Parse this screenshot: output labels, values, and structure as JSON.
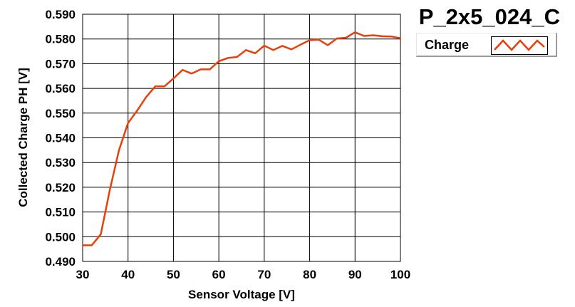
{
  "chart_data": {
    "type": "line",
    "title": "P_2x5_024_C",
    "xlabel": "Sensor Voltage [V]",
    "ylabel": "Collected Charge PH [V]",
    "xlim": [
      30,
      100
    ],
    "ylim": [
      0.49,
      0.59
    ],
    "xticks": [
      "30",
      "40",
      "50",
      "60",
      "70",
      "80",
      "90",
      "100"
    ],
    "yticks": [
      "0.490",
      "0.500",
      "0.510",
      "0.520",
      "0.530",
      "0.540",
      "0.550",
      "0.560",
      "0.570",
      "0.580",
      "0.590"
    ],
    "grid": true,
    "legend_position": "top-right",
    "series": [
      {
        "name": "Charge",
        "color": "#e8400c",
        "x": [
          30,
          32,
          34,
          36,
          38,
          40,
          42,
          44,
          46,
          48,
          50,
          52,
          54,
          56,
          58,
          60,
          62,
          64,
          66,
          68,
          70,
          72,
          74,
          76,
          78,
          80,
          82,
          84,
          86,
          88,
          90,
          92,
          94,
          96,
          98,
          100
        ],
        "y": [
          0.4965,
          0.4965,
          0.501,
          0.519,
          0.535,
          0.546,
          0.551,
          0.5565,
          0.5608,
          0.5608,
          0.564,
          0.5675,
          0.566,
          0.5677,
          0.5677,
          0.571,
          0.5723,
          0.5727,
          0.5755,
          0.5742,
          0.5773,
          0.5755,
          0.5772,
          0.5758,
          0.5777,
          0.5795,
          0.5797,
          0.5775,
          0.5802,
          0.5805,
          0.5827,
          0.5812,
          0.5815,
          0.5811,
          0.581,
          0.5803
        ]
      }
    ]
  }
}
